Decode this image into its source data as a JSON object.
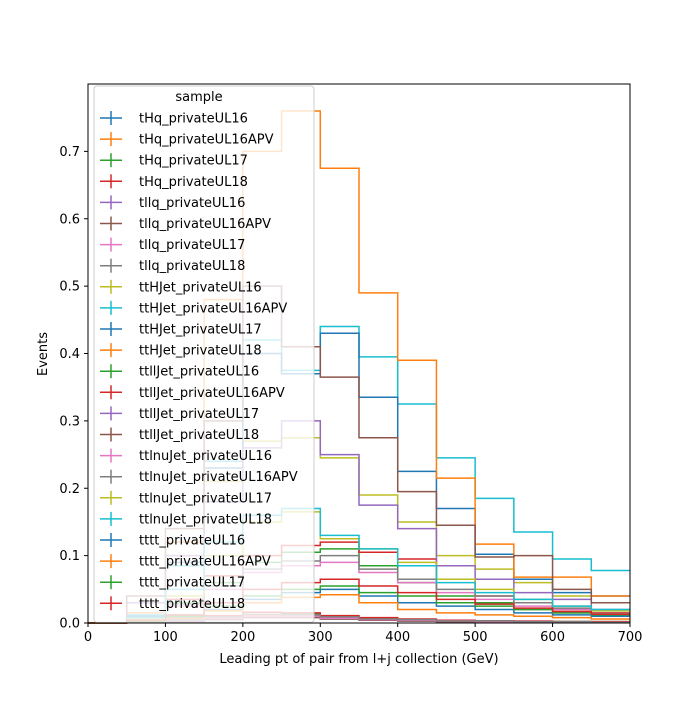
{
  "chart_data": {
    "type": "histogram-step",
    "xlabel": "Leading pt of pair from l+j collection (GeV)",
    "ylabel": "Events",
    "xlim": [
      0,
      700
    ],
    "ylim": [
      0,
      0.8
    ],
    "xticks": [
      0,
      100,
      200,
      300,
      400,
      500,
      600,
      700
    ],
    "yticks": [
      0.0,
      0.1,
      0.2,
      0.3,
      0.4,
      0.5,
      0.6,
      0.7
    ],
    "legend_title": "sample",
    "legend_position": "upper-left",
    "bin_edges": [
      0,
      50,
      100,
      150,
      200,
      250,
      300,
      350,
      400,
      450,
      500,
      550,
      600,
      650,
      700
    ],
    "series": [
      {
        "name": "tHq_privateUL16",
        "color": "#1f77b4",
        "values": [
          0.0,
          0.002,
          0.004,
          0.008,
          0.012,
          0.012,
          0.008,
          0.006,
          0.004,
          0.003,
          0.003,
          0.002,
          0.002,
          0.001
        ]
      },
      {
        "name": "tHq_privateUL16APV",
        "color": "#ff7f0e",
        "values": [
          0.0,
          0.002,
          0.004,
          0.007,
          0.011,
          0.011,
          0.008,
          0.006,
          0.004,
          0.003,
          0.002,
          0.002,
          0.002,
          0.001
        ]
      },
      {
        "name": "tHq_privateUL17",
        "color": "#2ca02c",
        "values": [
          0.0,
          0.002,
          0.005,
          0.009,
          0.013,
          0.013,
          0.009,
          0.007,
          0.005,
          0.004,
          0.003,
          0.002,
          0.002,
          0.002
        ]
      },
      {
        "name": "tHq_privateUL18",
        "color": "#d62728",
        "values": [
          0.0,
          0.003,
          0.006,
          0.011,
          0.016,
          0.015,
          0.011,
          0.008,
          0.006,
          0.004,
          0.003,
          0.003,
          0.002,
          0.002
        ]
      },
      {
        "name": "tllq_privateUL16",
        "color": "#9467bd",
        "values": [
          0.0,
          0.001,
          0.003,
          0.006,
          0.009,
          0.009,
          0.006,
          0.005,
          0.003,
          0.002,
          0.002,
          0.002,
          0.001,
          0.001
        ]
      },
      {
        "name": "tllq_privateUL16APV",
        "color": "#8c564b",
        "values": [
          0.0,
          0.001,
          0.003,
          0.005,
          0.008,
          0.008,
          0.006,
          0.004,
          0.003,
          0.002,
          0.002,
          0.001,
          0.001,
          0.001
        ]
      },
      {
        "name": "tllq_privateUL17",
        "color": "#e377c2",
        "values": [
          0.0,
          0.002,
          0.004,
          0.007,
          0.01,
          0.01,
          0.007,
          0.005,
          0.004,
          0.003,
          0.002,
          0.002,
          0.001,
          0.001
        ]
      },
      {
        "name": "tllq_privateUL18",
        "color": "#7f7f7f",
        "values": [
          0.0,
          0.002,
          0.005,
          0.009,
          0.013,
          0.012,
          0.009,
          0.006,
          0.005,
          0.003,
          0.003,
          0.002,
          0.002,
          0.001
        ]
      },
      {
        "name": "ttHJet_privateUL16",
        "color": "#bcbd22",
        "values": [
          0.0,
          0.01,
          0.1,
          0.21,
          0.27,
          0.275,
          0.245,
          0.19,
          0.15,
          0.1,
          0.08,
          0.06,
          0.04,
          0.03
        ]
      },
      {
        "name": "ttHJet_privateUL16APV",
        "color": "#17becf",
        "values": [
          0.0,
          0.012,
          0.085,
          0.24,
          0.42,
          0.375,
          0.44,
          0.395,
          0.325,
          0.245,
          0.185,
          0.135,
          0.095,
          0.078
        ]
      },
      {
        "name": "ttHJet_privateUL17",
        "color": "#1f77b4",
        "values": [
          0.0,
          0.01,
          0.09,
          0.23,
          0.4,
          0.37,
          0.43,
          0.335,
          0.225,
          0.17,
          0.102,
          0.065,
          0.045,
          0.04
        ]
      },
      {
        "name": "ttHJet_privateUL18",
        "color": "#ff7f0e",
        "values": [
          0.0,
          0.015,
          0.12,
          0.48,
          0.7,
          0.76,
          0.675,
          0.49,
          0.39,
          0.215,
          0.117,
          0.068,
          0.068,
          0.04
        ]
      },
      {
        "name": "ttllJet_privateUL16",
        "color": "#2ca02c",
        "values": [
          0.0,
          0.005,
          0.03,
          0.06,
          0.09,
          0.105,
          0.11,
          0.085,
          0.06,
          0.04,
          0.03,
          0.02,
          0.015,
          0.01
        ]
      },
      {
        "name": "ttllJet_privateUL16APV",
        "color": "#d62728",
        "values": [
          0.0,
          0.006,
          0.035,
          0.07,
          0.1,
          0.115,
          0.12,
          0.105,
          0.095,
          0.065,
          0.04,
          0.03,
          0.02,
          0.015
        ]
      },
      {
        "name": "ttllJet_privateUL17",
        "color": "#9467bd",
        "values": [
          0.0,
          0.03,
          0.1,
          0.18,
          0.26,
          0.3,
          0.25,
          0.175,
          0.14,
          0.085,
          0.065,
          0.045,
          0.035,
          0.02
        ]
      },
      {
        "name": "ttllJet_privateUL18",
        "color": "#8c564b",
        "values": [
          0.0,
          0.04,
          0.14,
          0.3,
          0.5,
          0.41,
          0.365,
          0.275,
          0.195,
          0.145,
          0.098,
          0.1,
          0.05,
          0.03
        ]
      },
      {
        "name": "ttlnuJet_privateUL16",
        "color": "#e377c2",
        "values": [
          0.0,
          0.004,
          0.025,
          0.05,
          0.075,
          0.085,
          0.09,
          0.075,
          0.06,
          0.045,
          0.035,
          0.025,
          0.02,
          0.012
        ]
      },
      {
        "name": "ttlnuJet_privateUL16APV",
        "color": "#7f7f7f",
        "values": [
          0.0,
          0.004,
          0.028,
          0.055,
          0.08,
          0.092,
          0.1,
          0.08,
          0.065,
          0.05,
          0.04,
          0.03,
          0.022,
          0.014
        ]
      },
      {
        "name": "ttlnuJet_privateUL17",
        "color": "#bcbd22",
        "values": [
          0.0,
          0.006,
          0.04,
          0.1,
          0.15,
          0.165,
          0.125,
          0.11,
          0.09,
          0.065,
          0.05,
          0.035,
          0.025,
          0.018
        ]
      },
      {
        "name": "ttlnuJet_privateUL18",
        "color": "#17becf",
        "values": [
          0.0,
          0.008,
          0.05,
          0.12,
          0.16,
          0.17,
          0.13,
          0.11,
          0.085,
          0.06,
          0.045,
          0.035,
          0.025,
          0.02
        ]
      },
      {
        "name": "tttt_privateUL16",
        "color": "#1f77b4",
        "values": [
          0.0,
          0.002,
          0.008,
          0.02,
          0.035,
          0.045,
          0.05,
          0.04,
          0.03,
          0.025,
          0.02,
          0.015,
          0.012,
          0.01
        ]
      },
      {
        "name": "tttt_privateUL16APV",
        "color": "#ff7f0e",
        "values": [
          0.0,
          0.002,
          0.007,
          0.018,
          0.03,
          0.038,
          0.042,
          0.03,
          0.02,
          0.015,
          0.012,
          0.01,
          0.008,
          0.006
        ]
      },
      {
        "name": "tttt_privateUL17",
        "color": "#2ca02c",
        "values": [
          0.0,
          0.003,
          0.01,
          0.025,
          0.04,
          0.05,
          0.055,
          0.045,
          0.04,
          0.03,
          0.025,
          0.02,
          0.015,
          0.012
        ]
      },
      {
        "name": "tttt_privateUL18",
        "color": "#d62728",
        "values": [
          0.0,
          0.004,
          0.012,
          0.03,
          0.05,
          0.06,
          0.065,
          0.055,
          0.045,
          0.035,
          0.028,
          0.022,
          0.017,
          0.013
        ]
      }
    ]
  }
}
